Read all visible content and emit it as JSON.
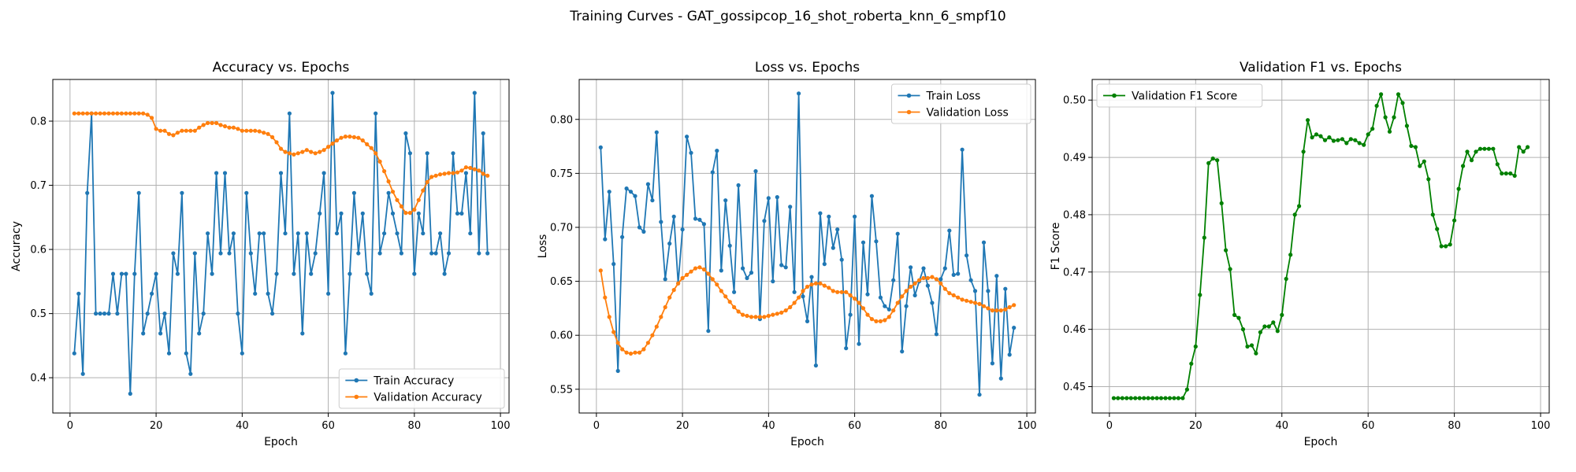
{
  "figure": {
    "suptitle": "Training Curves - GAT_gossipcop_16_shot_roberta_knn_6_smpf10"
  },
  "colors": {
    "blue": "#1f77b4",
    "orange": "#ff7f0e",
    "green": "#008000",
    "grid": "#b0b0b0"
  },
  "chart_data": [
    {
      "id": "accuracy",
      "type": "line",
      "title": "Accuracy vs. Epochs",
      "xlabel": "Epoch",
      "ylabel": "Accuracy",
      "xlim": [
        -4,
        102
      ],
      "ylim": [
        0.345,
        0.865
      ],
      "xticks": [
        0,
        20,
        40,
        60,
        80,
        100
      ],
      "yticks": [
        0.4,
        0.5,
        0.6,
        0.7,
        0.8
      ],
      "tick_decimals": 1,
      "grid": true,
      "legend": "lower-right",
      "x_start": 1,
      "series": [
        {
          "name": "Train Accuracy",
          "color": "#1f77b4",
          "values": [
            0.438,
            0.531,
            0.406,
            0.688,
            0.812,
            0.5,
            0.5,
            0.5,
            0.5,
            0.562,
            0.5,
            0.562,
            0.562,
            0.375,
            0.562,
            0.688,
            0.469,
            0.5,
            0.531,
            0.562,
            0.469,
            0.5,
            0.438,
            0.594,
            0.562,
            0.688,
            0.438,
            0.406,
            0.594,
            0.469,
            0.5,
            0.625,
            0.562,
            0.719,
            0.594,
            0.719,
            0.594,
            0.625,
            0.5,
            0.438,
            0.688,
            0.594,
            0.531,
            0.625,
            0.625,
            0.531,
            0.5,
            0.562,
            0.719,
            0.625,
            0.812,
            0.562,
            0.625,
            0.469,
            0.625,
            0.562,
            0.594,
            0.656,
            0.719,
            0.531,
            0.844,
            0.625,
            0.656,
            0.438,
            0.562,
            0.688,
            0.594,
            0.656,
            0.562,
            0.531,
            0.812,
            0.594,
            0.625,
            0.688,
            0.656,
            0.625,
            0.594,
            0.781,
            0.75,
            0.562,
            0.656,
            0.625,
            0.75,
            0.594,
            0.594,
            0.625,
            0.562,
            0.594,
            0.75,
            0.656,
            0.656,
            0.719,
            0.625,
            0.844,
            0.594,
            0.781,
            0.594
          ]
        },
        {
          "name": "Validation Accuracy",
          "color": "#ff7f0e",
          "values": [
            0.812,
            0.812,
            0.812,
            0.812,
            0.812,
            0.812,
            0.812,
            0.812,
            0.812,
            0.812,
            0.812,
            0.812,
            0.812,
            0.812,
            0.812,
            0.812,
            0.812,
            0.81,
            0.805,
            0.788,
            0.785,
            0.785,
            0.78,
            0.778,
            0.782,
            0.785,
            0.785,
            0.785,
            0.785,
            0.79,
            0.794,
            0.797,
            0.797,
            0.797,
            0.794,
            0.792,
            0.79,
            0.79,
            0.788,
            0.785,
            0.785,
            0.785,
            0.785,
            0.784,
            0.782,
            0.78,
            0.775,
            0.767,
            0.757,
            0.752,
            0.75,
            0.748,
            0.75,
            0.752,
            0.755,
            0.752,
            0.75,
            0.752,
            0.755,
            0.76,
            0.765,
            0.77,
            0.774,
            0.776,
            0.776,
            0.775,
            0.774,
            0.77,
            0.764,
            0.758,
            0.75,
            0.737,
            0.722,
            0.706,
            0.69,
            0.677,
            0.667,
            0.657,
            0.657,
            0.662,
            0.677,
            0.692,
            0.705,
            0.713,
            0.715,
            0.717,
            0.718,
            0.719,
            0.719,
            0.72,
            0.723,
            0.728,
            0.727,
            0.725,
            0.723,
            0.718,
            0.715
          ]
        }
      ]
    },
    {
      "id": "loss",
      "type": "line",
      "title": "Loss vs. Epochs",
      "xlabel": "Epoch",
      "ylabel": "Loss",
      "xlim": [
        -4,
        102
      ],
      "ylim": [
        0.528,
        0.837
      ],
      "xticks": [
        0,
        20,
        40,
        60,
        80,
        100
      ],
      "yticks": [
        0.55,
        0.6,
        0.65,
        0.7,
        0.75,
        0.8
      ],
      "tick_decimals": 2,
      "grid": true,
      "legend": "upper-right",
      "x_start": 1,
      "series": [
        {
          "name": "Train Loss",
          "color": "#1f77b4",
          "values": [
            0.774,
            0.689,
            0.733,
            0.666,
            0.567,
            0.691,
            0.736,
            0.733,
            0.729,
            0.7,
            0.696,
            0.74,
            0.725,
            0.788,
            0.705,
            0.652,
            0.685,
            0.71,
            0.648,
            0.698,
            0.784,
            0.769,
            0.708,
            0.707,
            0.703,
            0.604,
            0.751,
            0.771,
            0.66,
            0.725,
            0.683,
            0.64,
            0.739,
            0.662,
            0.653,
            0.658,
            0.752,
            0.615,
            0.706,
            0.727,
            0.65,
            0.728,
            0.665,
            0.663,
            0.719,
            0.64,
            0.824,
            0.636,
            0.613,
            0.654,
            0.572,
            0.713,
            0.666,
            0.71,
            0.681,
            0.698,
            0.67,
            0.588,
            0.619,
            0.71,
            0.592,
            0.686,
            0.638,
            0.729,
            0.687,
            0.635,
            0.627,
            0.624,
            0.651,
            0.694,
            0.585,
            0.627,
            0.663,
            0.637,
            0.65,
            0.662,
            0.646,
            0.63,
            0.601,
            0.652,
            0.662,
            0.697,
            0.656,
            0.657,
            0.772,
            0.674,
            0.651,
            0.641,
            0.545,
            0.686,
            0.641,
            0.574,
            0.655,
            0.56,
            0.643,
            0.582,
            0.607
          ]
        },
        {
          "name": "Validation Loss",
          "color": "#ff7f0e",
          "values": [
            0.66,
            0.635,
            0.617,
            0.603,
            0.593,
            0.587,
            0.584,
            0.583,
            0.584,
            0.584,
            0.587,
            0.593,
            0.6,
            0.608,
            0.617,
            0.626,
            0.635,
            0.642,
            0.648,
            0.653,
            0.656,
            0.659,
            0.662,
            0.663,
            0.661,
            0.657,
            0.652,
            0.647,
            0.641,
            0.636,
            0.631,
            0.626,
            0.622,
            0.619,
            0.618,
            0.617,
            0.617,
            0.617,
            0.617,
            0.618,
            0.619,
            0.62,
            0.621,
            0.623,
            0.626,
            0.63,
            0.635,
            0.641,
            0.645,
            0.647,
            0.648,
            0.648,
            0.646,
            0.644,
            0.641,
            0.64,
            0.64,
            0.64,
            0.637,
            0.634,
            0.63,
            0.625,
            0.619,
            0.615,
            0.613,
            0.613,
            0.614,
            0.617,
            0.623,
            0.63,
            0.636,
            0.641,
            0.645,
            0.648,
            0.651,
            0.653,
            0.653,
            0.654,
            0.652,
            0.648,
            0.643,
            0.639,
            0.637,
            0.635,
            0.633,
            0.632,
            0.631,
            0.63,
            0.629,
            0.627,
            0.625,
            0.623,
            0.623,
            0.623,
            0.624,
            0.626,
            0.628
          ]
        }
      ]
    },
    {
      "id": "f1",
      "type": "line",
      "title": "Validation F1 vs. Epochs",
      "xlabel": "Epoch",
      "ylabel": "F1 Score",
      "xlim": [
        -4,
        102
      ],
      "ylim": [
        0.4454,
        0.5036
      ],
      "xticks": [
        0,
        20,
        40,
        60,
        80,
        100
      ],
      "yticks": [
        0.45,
        0.46,
        0.47,
        0.48,
        0.49,
        0.5
      ],
      "tick_decimals": 2,
      "grid": true,
      "legend": "upper-left",
      "x_start": 1,
      "series": [
        {
          "name": "Validation F1 Score",
          "color": "#008000",
          "values": [
            0.448,
            0.448,
            0.448,
            0.448,
            0.448,
            0.448,
            0.448,
            0.448,
            0.448,
            0.448,
            0.448,
            0.448,
            0.448,
            0.448,
            0.448,
            0.448,
            0.448,
            0.4495,
            0.454,
            0.457,
            0.466,
            0.476,
            0.489,
            0.4898,
            0.4895,
            0.482,
            0.4738,
            0.4705,
            0.4625,
            0.462,
            0.46,
            0.457,
            0.4572,
            0.4558,
            0.4595,
            0.4605,
            0.4605,
            0.4612,
            0.4597,
            0.4625,
            0.4688,
            0.473,
            0.48,
            0.4815,
            0.491,
            0.4965,
            0.4935,
            0.494,
            0.4937,
            0.493,
            0.4935,
            0.4929,
            0.493,
            0.4932,
            0.4925,
            0.4932,
            0.493,
            0.4925,
            0.4922,
            0.494,
            0.495,
            0.499,
            0.501,
            0.497,
            0.4945,
            0.497,
            0.501,
            0.4995,
            0.4955,
            0.492,
            0.4918,
            0.4885,
            0.4893,
            0.4862,
            0.48,
            0.4775,
            0.4745,
            0.4745,
            0.4748,
            0.479,
            0.4845,
            0.4885,
            0.491,
            0.4895,
            0.491,
            0.4915,
            0.4915,
            0.4915,
            0.4915,
            0.4888,
            0.4872,
            0.4872,
            0.4872,
            0.4868,
            0.4918,
            0.491,
            0.4918
          ]
        }
      ]
    }
  ]
}
